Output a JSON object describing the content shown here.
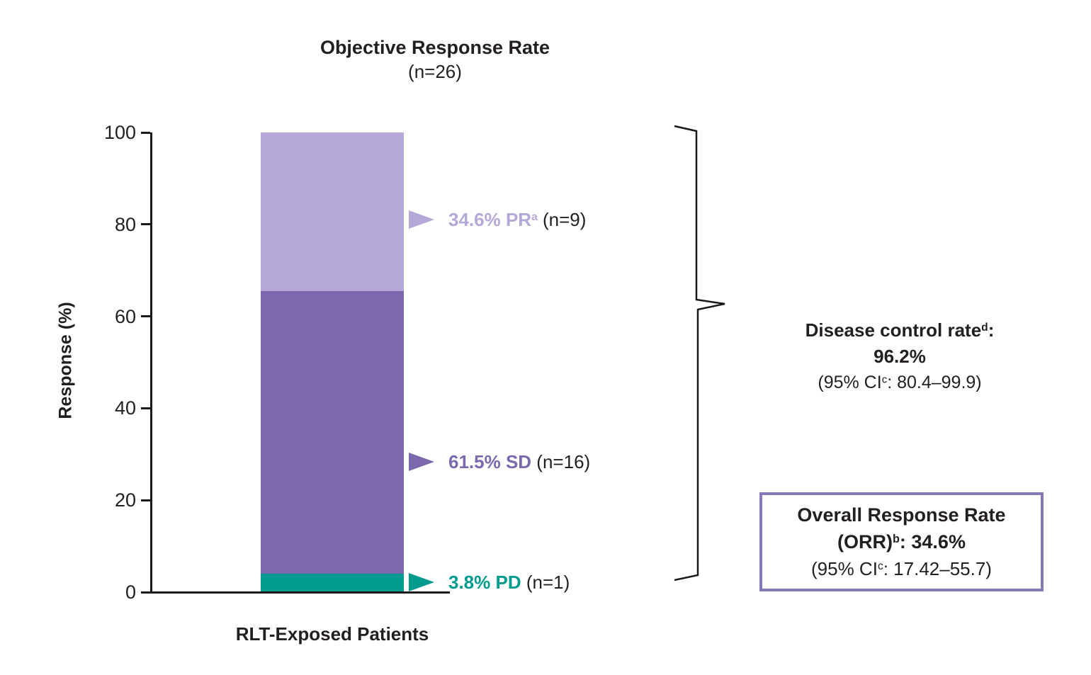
{
  "chart_data": {
    "type": "bar",
    "title": "Objective Response Rate",
    "subtitle": "(n=26)",
    "xlabel": "RLT-Exposed Patients",
    "ylabel": "Response (%)",
    "ylim": [
      0,
      100
    ],
    "y_ticks": [
      0,
      20,
      40,
      60,
      80,
      100
    ],
    "grid": false,
    "legend": false,
    "categories": [
      "RLT-Exposed Patients"
    ],
    "series": [
      {
        "name": "PR",
        "value": 34.6,
        "n": 9,
        "color": "#b5a8d8"
      },
      {
        "name": "SD",
        "value": 61.5,
        "n": 16,
        "color": "#7c69ad"
      },
      {
        "name": "PD",
        "value": 3.8,
        "n": 1,
        "color": "#009a8e"
      }
    ],
    "annotations": [
      {
        "pct": "34.6% PR",
        "sup": "a",
        "n": " (n=9)"
      },
      {
        "pct": "61.5% SD",
        "sup": "",
        "n": " (n=16)"
      },
      {
        "pct": "3.8% PD",
        "sup": "",
        "n": " (n=1)"
      }
    ],
    "callouts": {
      "disease_control": {
        "line1_pre": "Disease control rate",
        "line1_sup": "d",
        "line1_post": ":",
        "line2": "96.2%",
        "line3_pre": "(95% CI",
        "line3_sup": "c",
        "line3_post": ": 80.4–99.9)"
      },
      "orr_box": {
        "line1": "Overall Response Rate",
        "line2_pre": "(ORR)",
        "line2_sup": "b",
        "line2_post": ": 34.6%",
        "line3_pre": "(95% CI",
        "line3_sup": "c",
        "line3_post": ": 17.42–55.7)",
        "border_color": "#8678b8"
      }
    },
    "colors": {
      "pr": "#b5a8d8",
      "sd": "#7c69ad",
      "pd": "#009a8e",
      "axis": "#1a1a1a",
      "text": "#231f20",
      "box_border": "#8678b8",
      "background": "#ffffff"
    }
  }
}
